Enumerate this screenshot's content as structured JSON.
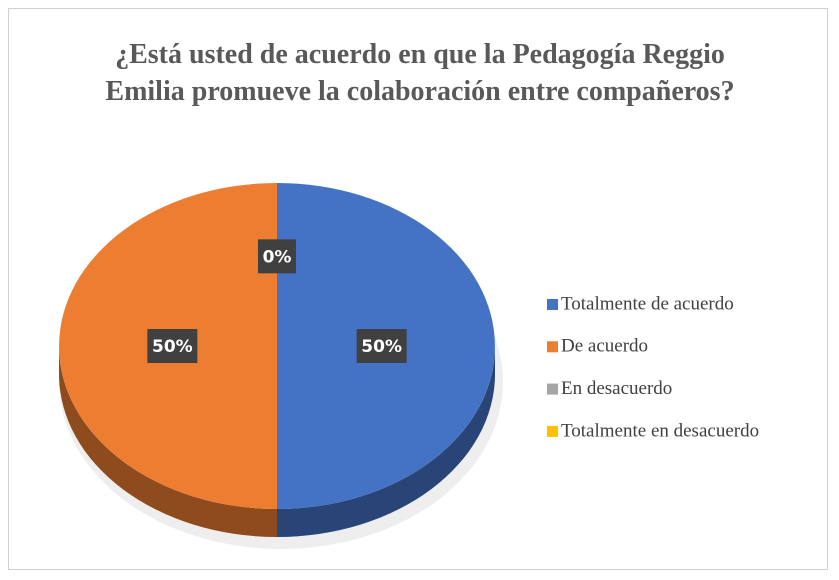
{
  "chart_data": {
    "type": "pie",
    "title": "¿Está usted de acuerdo en que la Pedagogía Reggio Emilia promueve la colaboración entre compañeros?",
    "categories": [
      "Totalmente de acuerdo",
      "De acuerdo",
      "En desacuerdo",
      "Totalmente en desacuerdo"
    ],
    "values": [
      50,
      50,
      0,
      0
    ],
    "value_labels": [
      "50%",
      "50%",
      "0%",
      null
    ],
    "colors": [
      "#4472c4",
      "#ed7d31",
      "#a5a5a5",
      "#ffc000"
    ],
    "legend": "right"
  }
}
